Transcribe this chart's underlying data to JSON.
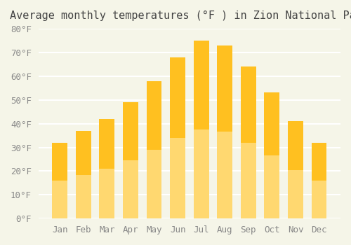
{
  "title": "Average monthly temperatures (°F ) in Zion National Park",
  "months": [
    "Jan",
    "Feb",
    "Mar",
    "Apr",
    "May",
    "Jun",
    "Jul",
    "Aug",
    "Sep",
    "Oct",
    "Nov",
    "Dec"
  ],
  "values": [
    32,
    37,
    42,
    49,
    58,
    68,
    75,
    73,
    64,
    53,
    41,
    32
  ],
  "bar_color_top": "#FFC020",
  "bar_color_bottom": "#FFD870",
  "background_color": "#F5F5E8",
  "grid_color": "#FFFFFF",
  "ylim": [
    0,
    80
  ],
  "yticks": [
    0,
    10,
    20,
    30,
    40,
    50,
    60,
    70,
    80
  ],
  "ytick_labels": [
    "0°F",
    "10°F",
    "20°F",
    "30°F",
    "40°F",
    "50°F",
    "60°F",
    "70°F",
    "80°F"
  ],
  "title_fontsize": 11,
  "tick_fontsize": 9,
  "tick_color": "#888888",
  "title_color": "#444444"
}
